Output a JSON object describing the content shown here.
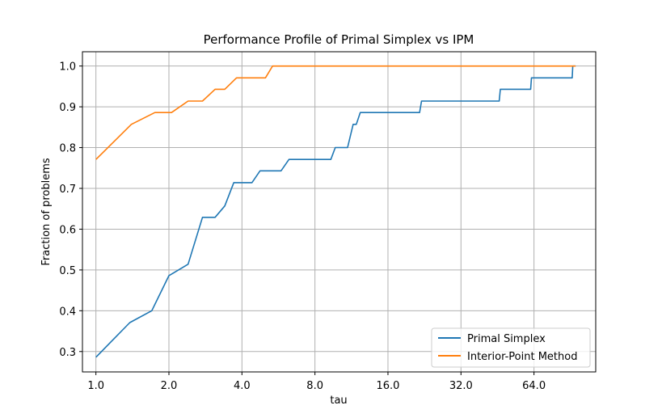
{
  "chart_data": {
    "type": "line",
    "title": "Performance Profile of Primal Simplex vs IPM",
    "xlabel": "tau",
    "ylabel": "Fraction of problems",
    "xscale": "log2",
    "xlim": [
      0.88,
      115
    ],
    "ylim": [
      0.25,
      1.035
    ],
    "xticks": [
      1,
      2,
      4,
      8,
      16,
      32,
      64
    ],
    "xtick_labels": [
      "1.0",
      "2.0",
      "4.0",
      "8.0",
      "16.0",
      "32.0",
      "64.0"
    ],
    "yticks": [
      0.3,
      0.4,
      0.5,
      0.6,
      0.7,
      0.8,
      0.9,
      1.0
    ],
    "ytick_labels": [
      "0.3",
      "0.4",
      "0.5",
      "0.6",
      "0.7",
      "0.8",
      "0.9",
      "1.0"
    ],
    "grid": true,
    "legend_position": "lower-right",
    "series": [
      {
        "name": "Primal Simplex",
        "color": "#1f77b4",
        "points": [
          [
            1.0,
            0.286
          ],
          [
            1.38,
            0.371
          ],
          [
            1.7,
            0.4
          ],
          [
            2.0,
            0.486
          ],
          [
            2.4,
            0.514
          ],
          [
            2.75,
            0.629
          ],
          [
            3.1,
            0.629
          ],
          [
            3.4,
            0.657
          ],
          [
            3.7,
            0.714
          ],
          [
            4.4,
            0.714
          ],
          [
            4.75,
            0.743
          ],
          [
            5.8,
            0.743
          ],
          [
            6.25,
            0.771
          ],
          [
            9.3,
            0.771
          ],
          [
            9.7,
            0.8
          ],
          [
            10.9,
            0.8
          ],
          [
            11.5,
            0.857
          ],
          [
            11.85,
            0.857
          ],
          [
            12.3,
            0.886
          ],
          [
            21.6,
            0.886
          ],
          [
            22.0,
            0.914
          ],
          [
            46.0,
            0.914
          ],
          [
            46.5,
            0.943
          ],
          [
            62.0,
            0.943
          ],
          [
            62.5,
            0.971
          ],
          [
            92.0,
            0.971
          ],
          [
            92.5,
            1.0
          ],
          [
            95.0,
            1.0
          ]
        ]
      },
      {
        "name": "Interior-Point Method",
        "color": "#ff7f0e",
        "points": [
          [
            1.0,
            0.771
          ],
          [
            1.4,
            0.857
          ],
          [
            1.75,
            0.886
          ],
          [
            2.05,
            0.886
          ],
          [
            2.4,
            0.914
          ],
          [
            2.75,
            0.914
          ],
          [
            3.1,
            0.943
          ],
          [
            3.4,
            0.943
          ],
          [
            3.8,
            0.971
          ],
          [
            5.0,
            0.971
          ],
          [
            5.35,
            1.0
          ],
          [
            95.0,
            1.0
          ]
        ]
      }
    ]
  }
}
